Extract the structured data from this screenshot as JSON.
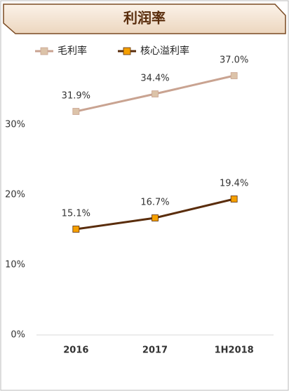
{
  "chart_data": {
    "type": "line",
    "title": "利润率",
    "categories": [
      "2016",
      "2017",
      "1H2018"
    ],
    "series": [
      {
        "name": "毛利率",
        "color": "#c9a391",
        "marker_color": "#dcc3a9",
        "values": [
          31.9,
          34.4,
          37.0
        ],
        "value_labels": [
          "31.9%",
          "34.4%",
          "37.0%"
        ]
      },
      {
        "name": "核心溢利率",
        "color": "#5a2d0c",
        "marker_color": "#f5a000",
        "values": [
          15.1,
          16.7,
          19.4
        ],
        "value_labels": [
          "15.1%",
          "16.7%",
          "19.4%"
        ]
      }
    ],
    "ylim": [
      0,
      40
    ],
    "yticks": [
      {
        "value": 0,
        "label": "0%"
      },
      {
        "value": 10,
        "label": "10%"
      },
      {
        "value": 20,
        "label": "20%"
      },
      {
        "value": 30,
        "label": "30%"
      }
    ],
    "legend": "top-left",
    "grid": false
  }
}
